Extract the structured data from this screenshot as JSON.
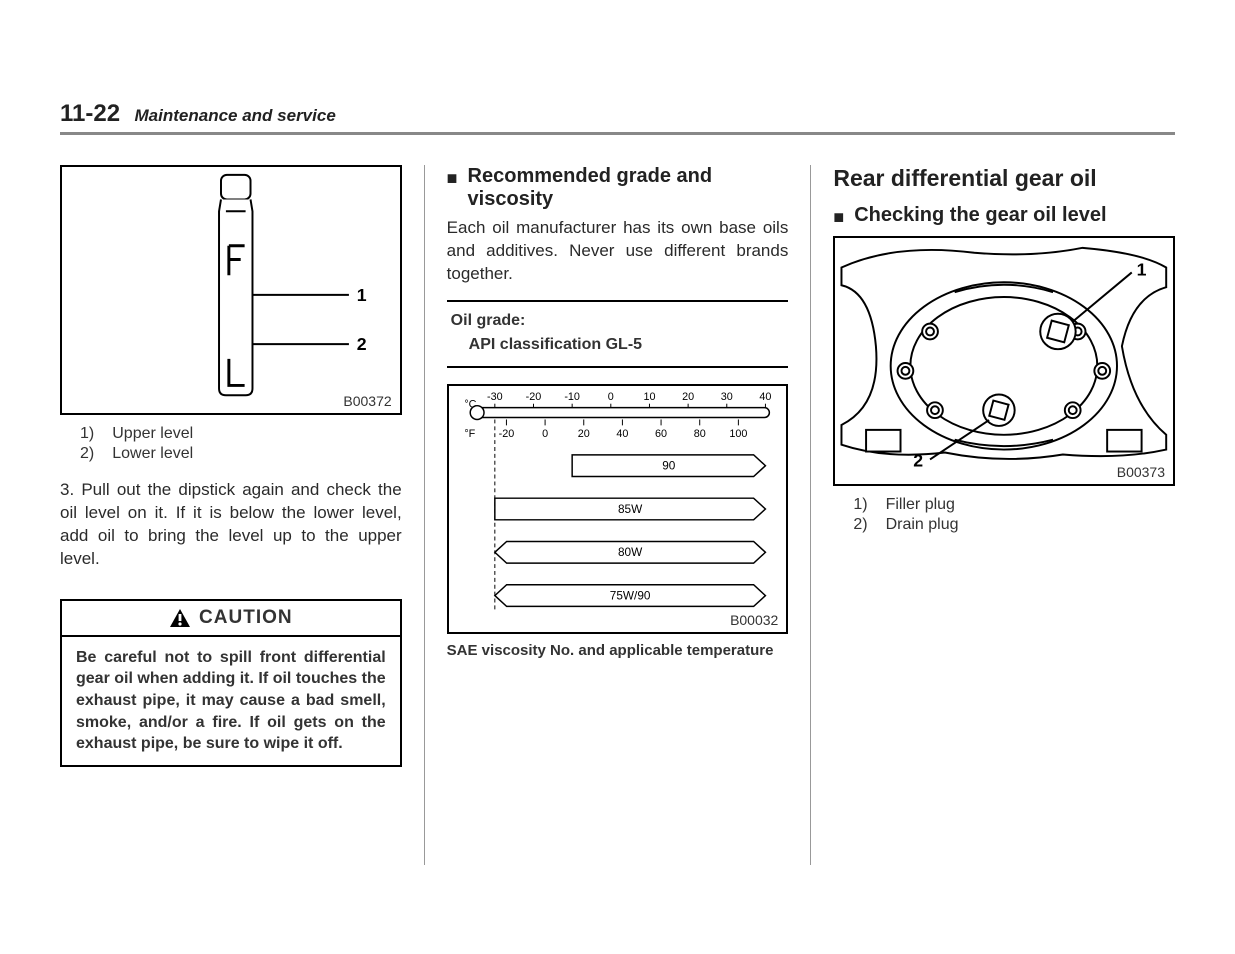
{
  "header": {
    "page": "11-22",
    "section": "Maintenance and service"
  },
  "col1": {
    "fig1": {
      "code": "B00372",
      "legend": [
        {
          "n": "1)",
          "t": "Upper level"
        },
        {
          "n": "2)",
          "t": "Lower level"
        }
      ]
    },
    "step3": "3.  Pull out the dipstick again and check the oil level on it. If it is below the lower level, add oil to bring the level up to the upper level.",
    "caution": {
      "label": "CAUTION",
      "body": "Be careful not to spill front differential gear oil when adding it. If oil touches the exhaust pipe, it may cause a bad smell, smoke, and/or a fire. If oil gets on the exhaust pipe, be sure to wipe it off."
    }
  },
  "col2": {
    "heading": "Recommended grade and viscosity",
    "para": "Each oil manufacturer has its own base oils and additives. Never use different brands together.",
    "grade": {
      "label": "Oil grade:",
      "value": "API classification GL-5"
    },
    "chart": {
      "code": "B00032",
      "c_label": "°C",
      "c_ticks": [
        "-30",
        "-20",
        "-10",
        "0",
        "10",
        "20",
        "30",
        "40"
      ],
      "f_label": "°F",
      "f_ticks": [
        "-20",
        "0",
        "20",
        "40",
        "60",
        "80",
        "100"
      ],
      "bars": [
        {
          "label": "90",
          "xmin": -10,
          "xmax": 40,
          "left_arrow": false,
          "right_arrow": true
        },
        {
          "label": "85W",
          "xmin": -30,
          "xmax": 40,
          "left_arrow": false,
          "right_arrow": true
        },
        {
          "label": "80W",
          "xmin": -30,
          "xmax": 40,
          "left_arrow": true,
          "right_arrow": true
        },
        {
          "label": "75W/90",
          "xmin": -30,
          "xmax": 40,
          "left_arrow": true,
          "right_arrow": true
        }
      ],
      "axis_min_c": -30,
      "axis_max_c": 40,
      "bar_fill": "#ffffff",
      "bar_stroke": "#000000",
      "caption": "SAE viscosity No. and applicable temperature"
    }
  },
  "col3": {
    "main": "Rear differential gear oil",
    "sub": "Checking the gear oil level",
    "fig": {
      "code": "B00373",
      "legend": [
        {
          "n": "1)",
          "t": "Filler plug"
        },
        {
          "n": "2)",
          "t": "Drain plug"
        }
      ]
    }
  }
}
